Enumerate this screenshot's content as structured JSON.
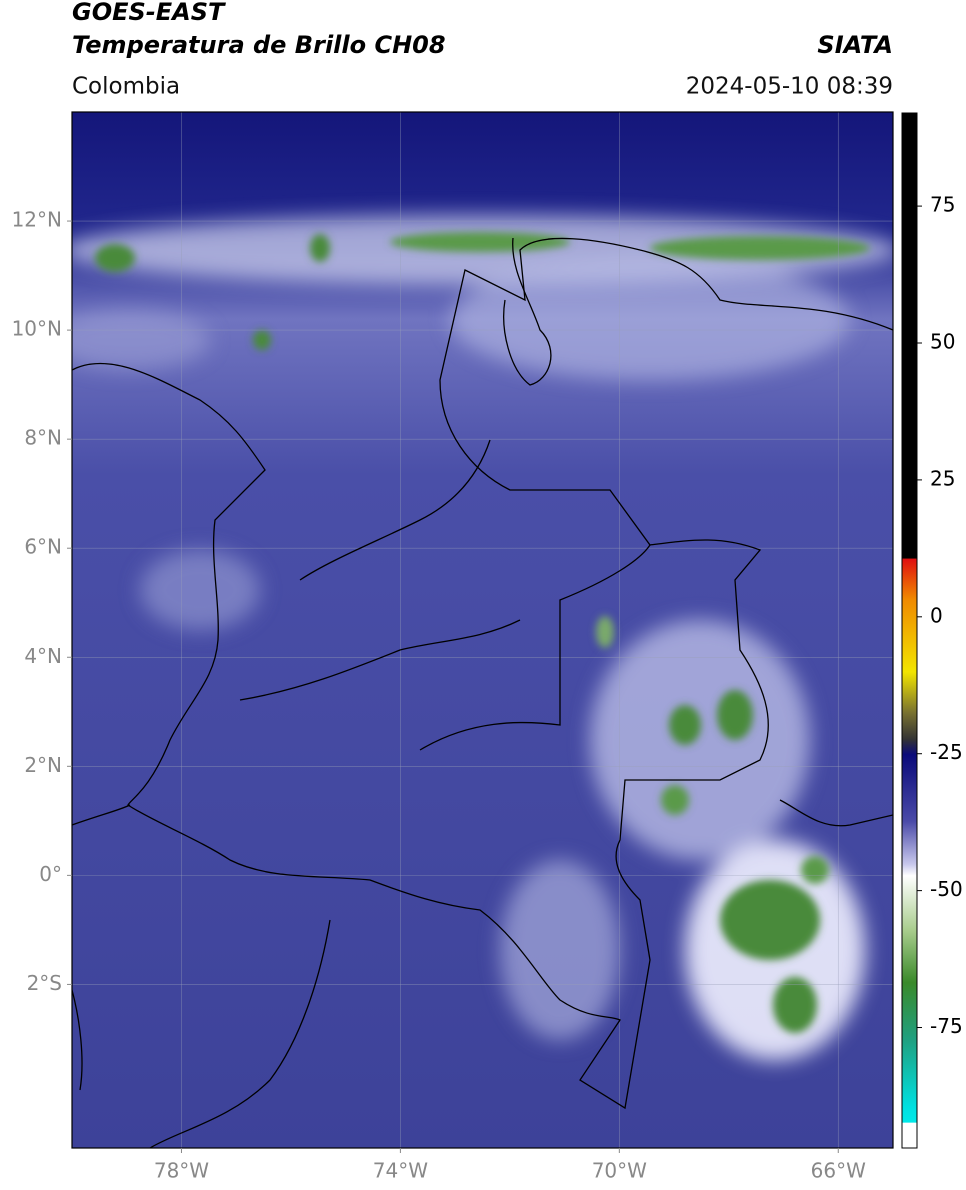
{
  "chart_data": {
    "type": "map",
    "title": "GOES-EAST",
    "subtitle": "Temperatura de Brillo CH08",
    "source": "SIATA",
    "region": "Colombia",
    "timestamp": "2024-05-10 08:39",
    "xlim": [
      -80,
      -65
    ],
    "ylim": [
      -5,
      14
    ],
    "xticks": [
      {
        "value": -78,
        "label": "78°W"
      },
      {
        "value": -74,
        "label": "74°W"
      },
      {
        "value": -70,
        "label": "70°W"
      },
      {
        "value": -66,
        "label": "66°W"
      }
    ],
    "yticks": [
      {
        "value": 12,
        "label": "12°N"
      },
      {
        "value": 10,
        "label": "10°N"
      },
      {
        "value": 8,
        "label": "8°N"
      },
      {
        "value": 6,
        "label": "6°N"
      },
      {
        "value": 4,
        "label": "4°N"
      },
      {
        "value": 2,
        "label": "2°N"
      },
      {
        "value": 0,
        "label": "0°"
      },
      {
        "value": -2,
        "label": "2°S"
      }
    ],
    "grid": true,
    "colorbar": {
      "lim": [
        -97,
        92
      ],
      "ticks": [
        75,
        50,
        25,
        0,
        -25,
        -50,
        -75
      ]
    }
  }
}
